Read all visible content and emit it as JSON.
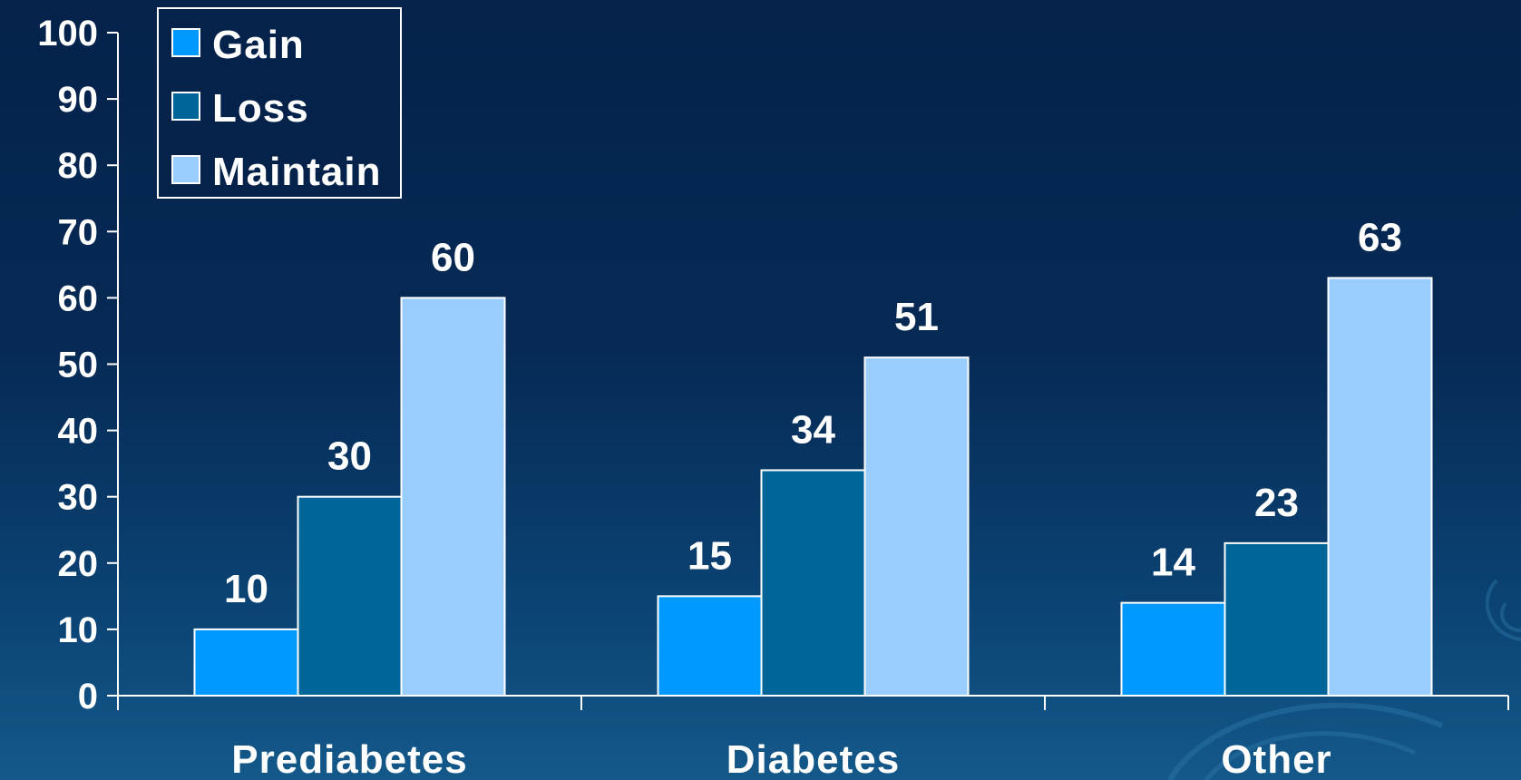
{
  "chart_data": {
    "type": "bar",
    "categories": [
      "Prediabetes",
      "Diabetes",
      "Other"
    ],
    "series": [
      {
        "name": "Gain",
        "values": [
          10,
          15,
          14
        ],
        "color": "#0099ff"
      },
      {
        "name": "Loss",
        "values": [
          30,
          34,
          23
        ],
        "color": "#006699"
      },
      {
        "name": "Maintain",
        "values": [
          60,
          51,
          63
        ],
        "color": "#99ccff"
      }
    ],
    "ylim": [
      0,
      100
    ],
    "yticks": [
      0,
      10,
      20,
      30,
      40,
      50,
      60,
      70,
      80,
      90,
      100
    ],
    "data_labels": true,
    "legend_position": "top-left",
    "grid": false,
    "title": "",
    "xlabel": "",
    "ylabel": ""
  },
  "colors": {
    "background": "#04224a",
    "axis": "#ffffff",
    "text": "#ffffff"
  }
}
